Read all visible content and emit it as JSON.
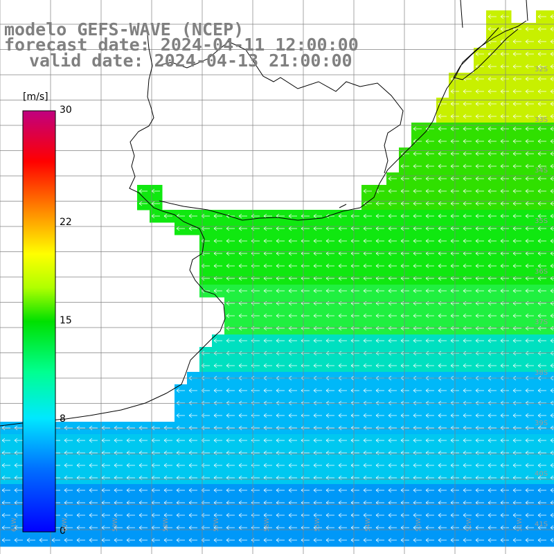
{
  "title": {
    "line1": "modelo GEFS-WAVE (NCEP)",
    "line2": "forecast date: 2024-04-11 12:00:00",
    "line3": "valid date: 2024-04-13 21:00:00"
  },
  "colorbar": {
    "unit": "[m/s]",
    "ticks": [
      "30",
      "22",
      "15",
      "8",
      "0"
    ],
    "tick_values": [
      30,
      22,
      15,
      8,
      0
    ],
    "min": 0,
    "max": 30,
    "colors": [
      "#0000ff",
      "#0090ff",
      "#00e8ff",
      "#00ff80",
      "#00e000",
      "#b0ff00",
      "#ffff00",
      "#ff9000",
      "#ff0000",
      "#c00070"
    ]
  },
  "map": {
    "lat_labels": [
      "32S",
      "33S",
      "34S",
      "35S",
      "36S",
      "37S",
      "38S",
      "39S",
      "40S",
      "41S"
    ],
    "lon_labels": [
      "61W",
      "60W",
      "59W",
      "58W",
      "57W",
      "56W",
      "55W",
      "54W",
      "53W",
      "52W",
      "51W"
    ],
    "land_color": "#ffffff",
    "grid_color": "#808080",
    "arrow_color": "#ffffff"
  }
}
